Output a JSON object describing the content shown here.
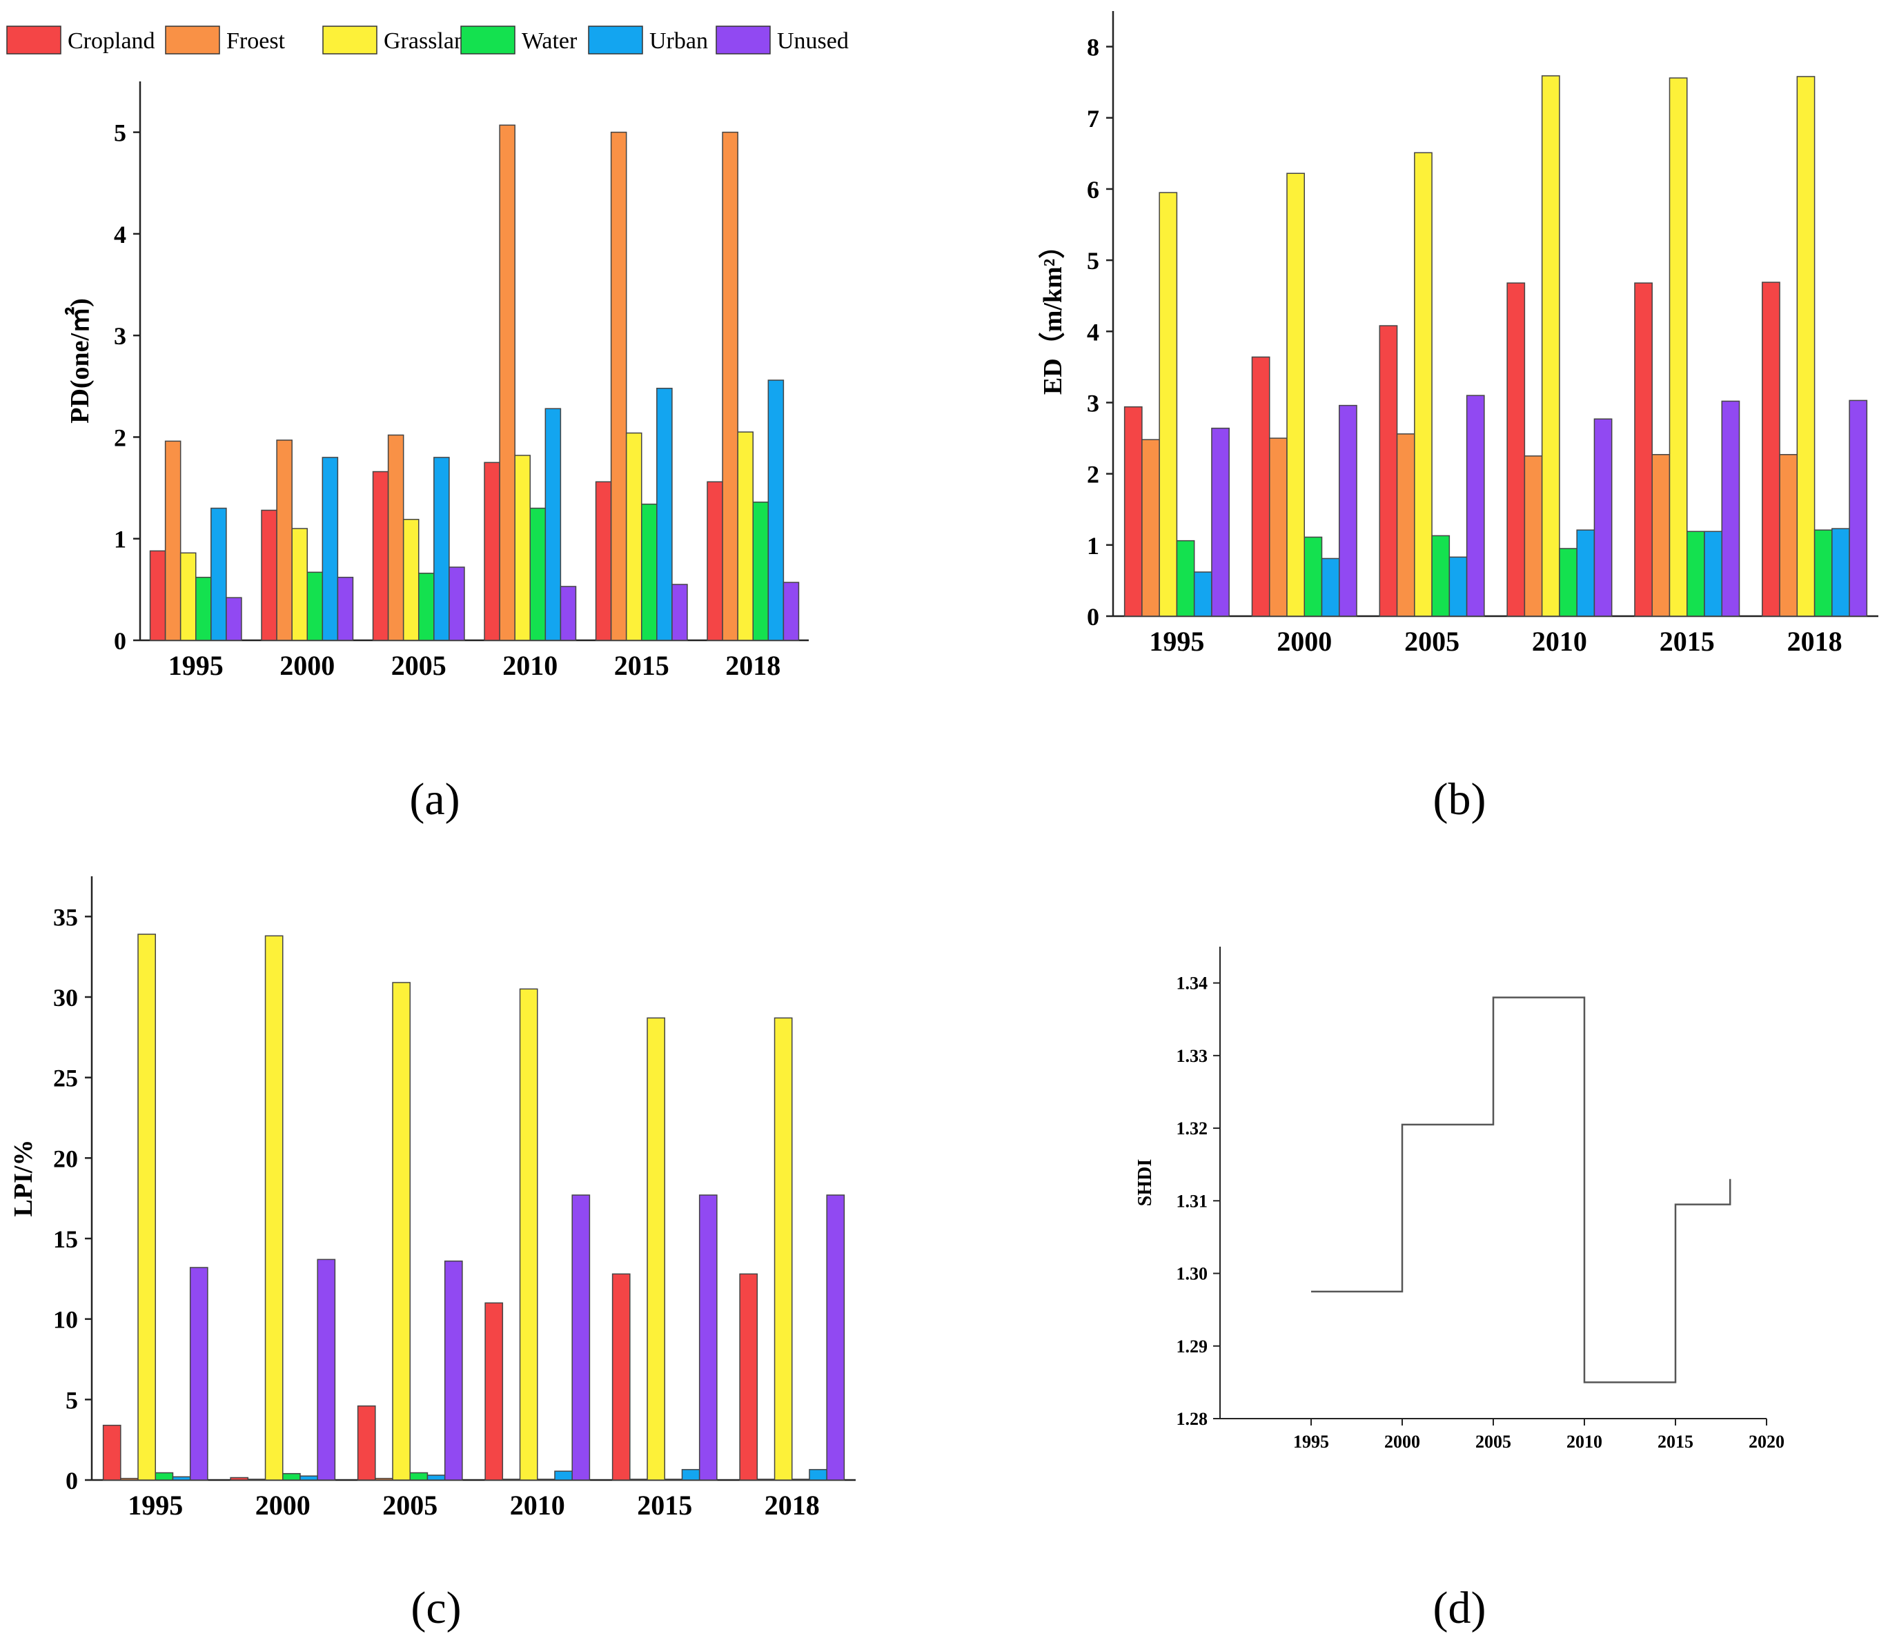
{
  "legend": {
    "items": [
      {
        "label": "Cropland",
        "color": "#f44546"
      },
      {
        "label": "Froest",
        "color": "#f99146"
      },
      {
        "label": "Grassland",
        "color": "#fdf139"
      },
      {
        "label": "Water",
        "color": "#14e14f"
      },
      {
        "label": "Urban",
        "color": "#13a5f0"
      },
      {
        "label": "Unused",
        "color": "#9149f2"
      }
    ]
  },
  "chart_data": [
    {
      "id": "a",
      "type": "bar",
      "panel_label": "(a)",
      "ylabel": "PD(one/㎡)",
      "ylim": [
        0,
        5.5
      ],
      "yticks": [
        "0",
        "1",
        "2",
        "3",
        "4",
        "5"
      ],
      "categories": [
        "1995",
        "2000",
        "2005",
        "2010",
        "2015",
        "2018"
      ],
      "series": [
        {
          "name": "Cropland",
          "values": [
            0.88,
            1.28,
            1.66,
            1.75,
            1.56,
            1.56
          ]
        },
        {
          "name": "Froest",
          "values": [
            1.96,
            1.97,
            2.02,
            5.07,
            5.0,
            5.0
          ]
        },
        {
          "name": "Grassland",
          "values": [
            0.86,
            1.1,
            1.19,
            1.82,
            2.04,
            2.05
          ]
        },
        {
          "name": "Water",
          "values": [
            0.62,
            0.67,
            0.66,
            1.3,
            1.34,
            1.36
          ]
        },
        {
          "name": "Urban",
          "values": [
            1.3,
            1.8,
            1.8,
            2.28,
            2.48,
            2.56
          ]
        },
        {
          "name": "Unused",
          "values": [
            0.42,
            0.62,
            0.72,
            0.53,
            0.55,
            0.57
          ]
        }
      ]
    },
    {
      "id": "b",
      "type": "bar",
      "panel_label": "(b)",
      "ylabel": "ED（m/km²）",
      "ylim": [
        0,
        8.5
      ],
      "yticks": [
        "0",
        "1",
        "2",
        "3",
        "4",
        "5",
        "6",
        "7",
        "8"
      ],
      "categories": [
        "1995",
        "2000",
        "2005",
        "2010",
        "2015",
        "2018"
      ],
      "series": [
        {
          "name": "Cropland",
          "values": [
            2.94,
            3.64,
            4.08,
            4.68,
            4.68,
            4.69
          ]
        },
        {
          "name": "Froest",
          "values": [
            2.48,
            2.5,
            2.56,
            2.25,
            2.27,
            2.27
          ]
        },
        {
          "name": "Grassland",
          "values": [
            5.95,
            6.22,
            6.51,
            7.59,
            7.56,
            7.58
          ]
        },
        {
          "name": "Water",
          "values": [
            1.06,
            1.11,
            1.13,
            0.95,
            1.19,
            1.21
          ]
        },
        {
          "name": "Urban",
          "values": [
            0.62,
            0.81,
            0.83,
            1.21,
            1.19,
            1.23
          ]
        },
        {
          "name": "Unused",
          "values": [
            2.64,
            2.96,
            3.1,
            2.77,
            3.02,
            3.03
          ]
        }
      ]
    },
    {
      "id": "c",
      "type": "bar",
      "panel_label": "(c)",
      "ylabel": "LPI/%",
      "ylim": [
        0,
        37.5
      ],
      "yticks": [
        "0",
        "5",
        "10",
        "15",
        "20",
        "25",
        "30",
        "35"
      ],
      "categories": [
        "1995",
        "2000",
        "2005",
        "2010",
        "2015",
        "2018"
      ],
      "series": [
        {
          "name": "Cropland",
          "values": [
            3.4,
            0.15,
            4.6,
            11.0,
            12.8,
            12.8
          ]
        },
        {
          "name": "Froest",
          "values": [
            0.1,
            0.05,
            0.1,
            0.05,
            0.05,
            0.05
          ]
        },
        {
          "name": "Grassland",
          "values": [
            33.9,
            33.8,
            30.9,
            30.5,
            28.7,
            28.7
          ]
        },
        {
          "name": "Water",
          "values": [
            0.45,
            0.4,
            0.45,
            0.05,
            0.05,
            0.05
          ]
        },
        {
          "name": "Urban",
          "values": [
            0.2,
            0.25,
            0.3,
            0.55,
            0.65,
            0.65
          ]
        },
        {
          "name": "Unused",
          "values": [
            13.2,
            13.7,
            13.6,
            17.7,
            17.7,
            17.7
          ]
        }
      ]
    },
    {
      "id": "d",
      "type": "line",
      "step": true,
      "panel_label": "(d)",
      "ylabel": "SHDI",
      "xlim": [
        1990,
        2020
      ],
      "ylim": [
        1.28,
        1.345
      ],
      "xticks": [
        "1995",
        "2000",
        "2005",
        "2010",
        "2015",
        "2020"
      ],
      "yticks": [
        "1.28",
        "1.29",
        "1.30",
        "1.31",
        "1.32",
        "1.33",
        "1.34"
      ],
      "series": [
        {
          "name": "SHDI",
          "x": [
            1995,
            2000,
            2005,
            2010,
            2015,
            2018
          ],
          "y": [
            1.2975,
            1.3205,
            1.338,
            1.285,
            1.3095,
            1.313
          ]
        }
      ]
    }
  ]
}
